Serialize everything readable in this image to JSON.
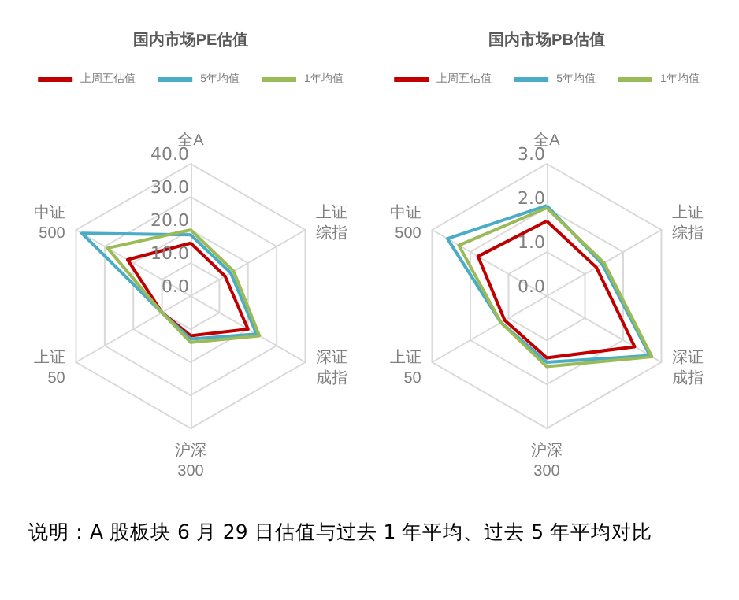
{
  "chart_data": [
    {
      "type": "radar",
      "title": "国内市场PE估值",
      "categories": [
        "全A",
        "上证综指",
        "深证成指",
        "沪深300",
        "上证50",
        "中证500"
      ],
      "series": [
        {
          "name": "上周五估值",
          "color": "#c00000",
          "values": [
            16,
            12,
            20,
            12,
            10,
            22
          ]
        },
        {
          "name": "5年均值",
          "color": "#4bacc6",
          "values": [
            18.5,
            14,
            23,
            13,
            10,
            38
          ]
        },
        {
          "name": "1年均值",
          "color": "#9bbb59",
          "values": [
            20,
            15,
            24,
            14,
            10,
            29
          ]
        }
      ],
      "ylim": [
        0,
        40
      ],
      "yticks": [
        {
          "value": 0,
          "label": "0.0"
        },
        {
          "value": 10,
          "label": "10.0"
        },
        {
          "value": 20,
          "label": "20.0"
        },
        {
          "value": 30,
          "label": "30.0"
        },
        {
          "value": 40,
          "label": "40.0"
        }
      ],
      "grid": true,
      "legend": "top",
      "marker": "none",
      "line_style": "solid",
      "annotations": [
        "说明：A 股板块 6 月 29 日估值与过去 1 年平均、过去 5 年平均对比"
      ]
    },
    {
      "type": "radar",
      "title": "国内市场PB估值",
      "categories": [
        "全A",
        "上证综指",
        "深证成指",
        "沪深300",
        "上证50",
        "中证500"
      ],
      "series": [
        {
          "name": "上周五估值",
          "color": "#c00000",
          "values": [
            1.7,
            1.3,
            2.3,
            1.4,
            1.1,
            1.8
          ]
        },
        {
          "name": "5年均值",
          "color": "#4bacc6",
          "values": [
            2.05,
            1.45,
            2.7,
            1.5,
            1.2,
            2.6
          ]
        },
        {
          "name": "1年均值",
          "color": "#9bbb59",
          "values": [
            2.0,
            1.5,
            2.75,
            1.6,
            1.2,
            2.3
          ]
        }
      ],
      "ylim": [
        0,
        3
      ],
      "yticks": [
        {
          "value": 0,
          "label": "0.0"
        },
        {
          "value": 1,
          "label": "1.0"
        },
        {
          "value": 2,
          "label": "2.0"
        },
        {
          "value": 3,
          "label": "3.0"
        }
      ],
      "grid": true,
      "legend": "top",
      "marker": "none",
      "line_style": "solid"
    }
  ]
}
